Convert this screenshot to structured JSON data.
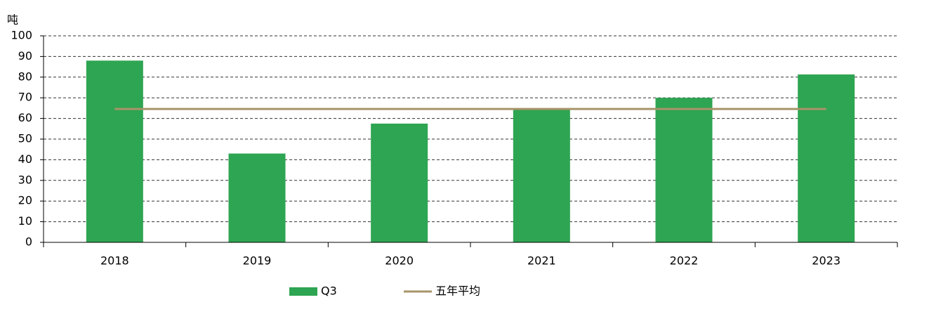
{
  "chart_data": {
    "type": "bar",
    "y_label": "吨",
    "categories": [
      "2018",
      "2019",
      "2020",
      "2021",
      "2022",
      "2023"
    ],
    "series": [
      {
        "name": "Q3",
        "type": "bar",
        "color": "#2ea552",
        "values": [
          88,
          43,
          57.5,
          64.6,
          70,
          81.3
        ]
      },
      {
        "name": "五年平均",
        "type": "line",
        "color": "#a8946a",
        "values": [
          64.6,
          64.6,
          64.6,
          64.6,
          64.6,
          64.6
        ]
      }
    ],
    "ylim": [
      0,
      100
    ],
    "yticks": [
      0,
      10,
      20,
      30,
      40,
      50,
      60,
      70,
      80,
      90,
      100
    ],
    "grid": true
  }
}
